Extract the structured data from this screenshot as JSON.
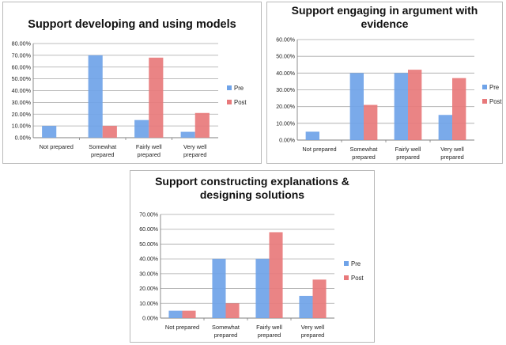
{
  "chart_data": [
    {
      "type": "bar",
      "title": "Support developing and using models",
      "xlabel": "",
      "ylabel": "",
      "categories": [
        "Not prepared",
        "Somewhat prepared",
        "Fairly well prepared",
        "Very well prepared"
      ],
      "category_lines": [
        [
          "Not prepared"
        ],
        [
          "Somewhat",
          "prepared"
        ],
        [
          "Fairly well",
          "prepared"
        ],
        [
          "Very well",
          "prepared"
        ]
      ],
      "series": [
        {
          "name": "Pre",
          "values": [
            10,
            70,
            15,
            5
          ]
        },
        {
          "name": "Post",
          "values": [
            0,
            10,
            68,
            21
          ]
        }
      ],
      "ylim": [
        0,
        80
      ],
      "yticks": [
        "0.00%",
        "10.00%",
        "20.00%",
        "30.00%",
        "40.00%",
        "50.00%",
        "60.00%",
        "70.00%",
        "80.00%"
      ],
      "grid": true,
      "legend": "right"
    },
    {
      "type": "bar",
      "title": "Support engaging in argument with evidence",
      "xlabel": "",
      "ylabel": "",
      "categories": [
        "Not prepared",
        "Somewhat prepared",
        "Fairly well prepared",
        "Very well prepared"
      ],
      "category_lines": [
        [
          "Not prepared"
        ],
        [
          "Somewhat",
          "prepared"
        ],
        [
          "Fairly well",
          "prepared"
        ],
        [
          "Very well",
          "prepared"
        ]
      ],
      "series": [
        {
          "name": "Pre",
          "values": [
            5,
            40,
            40,
            15
          ]
        },
        {
          "name": "Post",
          "values": [
            0,
            21,
            42,
            37
          ]
        }
      ],
      "ylim": [
        0,
        60
      ],
      "yticks": [
        "0.00%",
        "10.00%",
        "20.00%",
        "30.00%",
        "40.00%",
        "50.00%",
        "60.00%"
      ],
      "grid": true,
      "legend": "right"
    },
    {
      "type": "bar",
      "title": "Support constructing explanations & designing solutions",
      "xlabel": "",
      "ylabel": "",
      "categories": [
        "Not prepared",
        "Somewhat prepared",
        "Fairly well prepared",
        "Very well prepared"
      ],
      "category_lines": [
        [
          "Not prepared"
        ],
        [
          "Somewhat",
          "prepared"
        ],
        [
          "Fairly well",
          "prepared"
        ],
        [
          "Very well",
          "prepared"
        ]
      ],
      "series": [
        {
          "name": "Pre",
          "values": [
            5,
            40,
            40,
            15
          ]
        },
        {
          "name": "Post",
          "values": [
            5,
            10,
            58,
            26
          ]
        }
      ],
      "ylim": [
        0,
        70
      ],
      "yticks": [
        "0.00%",
        "10.00%",
        "20.00%",
        "30.00%",
        "40.00%",
        "50.00%",
        "60.00%",
        "70.00%"
      ],
      "grid": true,
      "legend": "right"
    }
  ],
  "colors": {
    "pre": "#6fa3e8",
    "post": "#e8797b",
    "grid": "#a6a6a6"
  }
}
